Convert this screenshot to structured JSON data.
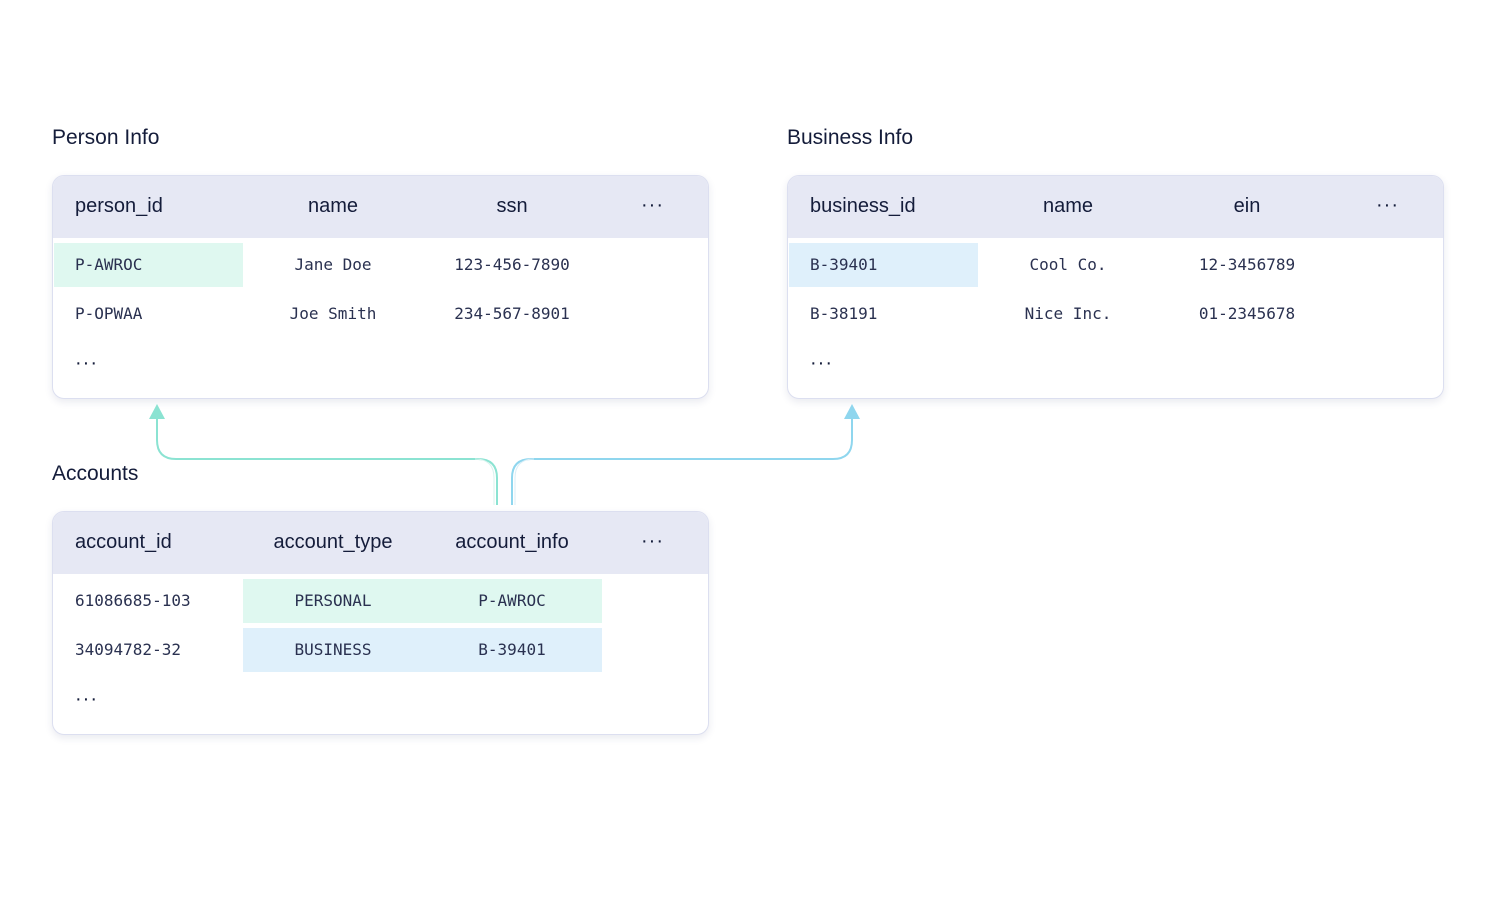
{
  "colors": {
    "person_highlight": "#dff8f0",
    "business_highlight": "#dff0fb",
    "header_bg": "#e6e8f4",
    "arrow_person": "#8be3d2",
    "arrow_business": "#8fd6ee"
  },
  "person": {
    "title": "Person Info",
    "columns": [
      "person_id",
      "name",
      "ssn"
    ],
    "more": "···",
    "rows": [
      [
        "P-AWROC",
        "Jane Doe",
        "123-456-7890"
      ],
      [
        "P-OPWAA",
        "Joe Smith",
        "234-567-8901"
      ]
    ],
    "ellipsis": "···"
  },
  "business": {
    "title": "Business Info",
    "columns": [
      "business_id",
      "name",
      "ein"
    ],
    "more": "···",
    "rows": [
      [
        "B-39401",
        "Cool Co.",
        "12-3456789"
      ],
      [
        "B-38191",
        "Nice Inc.",
        "01-2345678"
      ]
    ],
    "ellipsis": "···"
  },
  "accounts": {
    "title": "Accounts",
    "columns": [
      "account_id",
      "account_type",
      "account_info"
    ],
    "more": "···",
    "rows": [
      [
        "61086685-103",
        "PERSONAL",
        "P-AWROC"
      ],
      [
        "34094782-32",
        "BUSINESS",
        "B-39401"
      ]
    ],
    "ellipsis": "···"
  }
}
